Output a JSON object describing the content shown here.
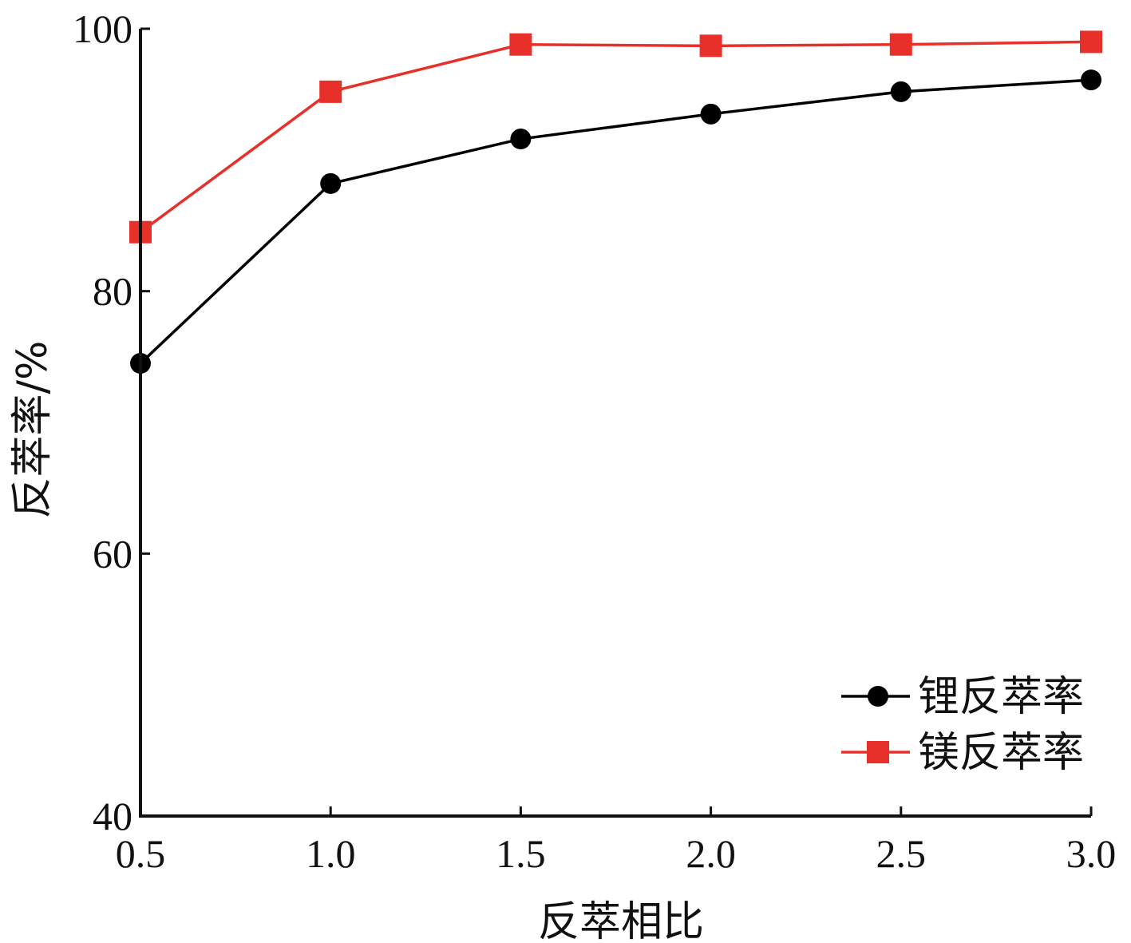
{
  "chart_data": {
    "type": "line",
    "xlabel": "反萃相比",
    "ylabel": "反萃率/%",
    "x": [
      0.5,
      1.0,
      1.5,
      2.0,
      2.5,
      3.0
    ],
    "x_tick_labels": [
      "0.5",
      "1.0",
      "1.5",
      "2.0",
      "2.5",
      "3.0"
    ],
    "y_ticks": [
      40,
      60,
      80,
      100
    ],
    "y_tick_labels": [
      "40",
      "60",
      "80",
      "100"
    ],
    "xlim": [
      0.5,
      3.0
    ],
    "ylim": [
      40,
      100
    ],
    "grid": false,
    "legend_position": "bottom-right",
    "series": [
      {
        "name": "锂反萃率",
        "color": "#000000",
        "marker": "circle",
        "values": [
          74.5,
          88.2,
          91.6,
          93.5,
          95.2,
          96.1
        ]
      },
      {
        "name": "镁反萃率",
        "color": "#e8302a",
        "marker": "square",
        "values": [
          84.5,
          95.2,
          98.8,
          98.7,
          98.8,
          99.0
        ]
      }
    ]
  }
}
